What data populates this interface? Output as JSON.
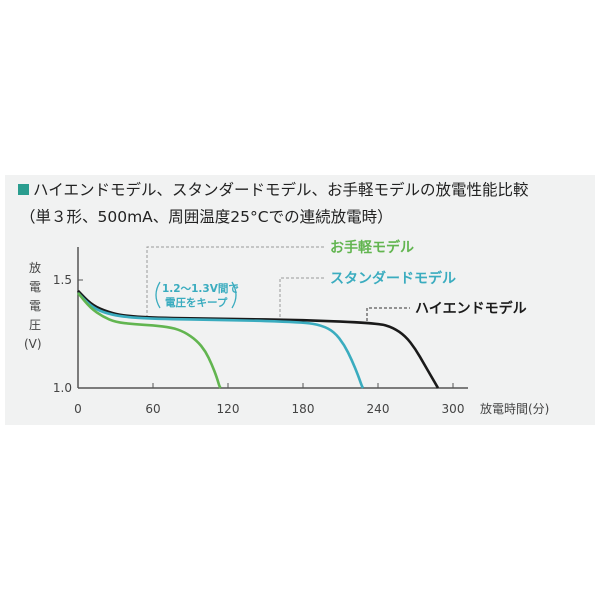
{
  "chart_data": {
    "type": "line",
    "title": "ハイエンドモデル、スタンダードモデル、お手軽モデルの放電性能比較",
    "subtitle": "（単３形、500mA、周囲温度25°Cでの連続放電時）",
    "ylabel": [
      "放",
      "電",
      "電",
      "圧",
      "(V)"
    ],
    "xlabel": "放電時間(分)",
    "xlim": [
      0,
      310
    ],
    "ylim": [
      1.0,
      1.62
    ],
    "xticks": [
      0,
      60,
      120,
      180,
      240,
      300
    ],
    "yticks": [
      1.0,
      1.5
    ],
    "xtick_labels": [
      "0",
      "60",
      "120",
      "180",
      "240",
      "300"
    ],
    "ytick_labels": [
      "1.0",
      "1.5"
    ],
    "grid": false,
    "annotation": [
      "1.2〜1.3V間で",
      "電圧をキープ"
    ],
    "series": [
      {
        "name": "お手軽モデル",
        "color": "#62b550",
        "x": [
          0,
          10,
          20,
          30,
          45,
          60,
          75,
          85,
          95,
          102,
          107,
          111,
          113,
          114
        ],
        "y": [
          1.44,
          1.37,
          1.33,
          1.305,
          1.295,
          1.29,
          1.28,
          1.26,
          1.22,
          1.17,
          1.11,
          1.05,
          1.01,
          1.0
        ]
      },
      {
        "name": "スタンダードモデル",
        "color": "#3aacbf",
        "x": [
          0,
          10,
          20,
          35,
          60,
          120,
          180,
          195,
          205,
          213,
          219,
          224,
          227,
          228
        ],
        "y": [
          1.44,
          1.38,
          1.35,
          1.33,
          1.32,
          1.315,
          1.305,
          1.29,
          1.26,
          1.2,
          1.13,
          1.06,
          1.01,
          1.0
        ]
      },
      {
        "name": "ハイエンドモデル",
        "color": "#1a1a1a",
        "x": [
          0,
          10,
          20,
          35,
          60,
          120,
          180,
          240,
          252,
          262,
          270,
          277,
          283,
          287,
          288
        ],
        "y": [
          1.45,
          1.39,
          1.36,
          1.335,
          1.325,
          1.32,
          1.315,
          1.3,
          1.28,
          1.24,
          1.18,
          1.11,
          1.05,
          1.01,
          1.0
        ]
      }
    ]
  },
  "colors": {
    "title_square": "#2a9d8f",
    "annotation": "#3aacbf",
    "leader": "#999999"
  }
}
